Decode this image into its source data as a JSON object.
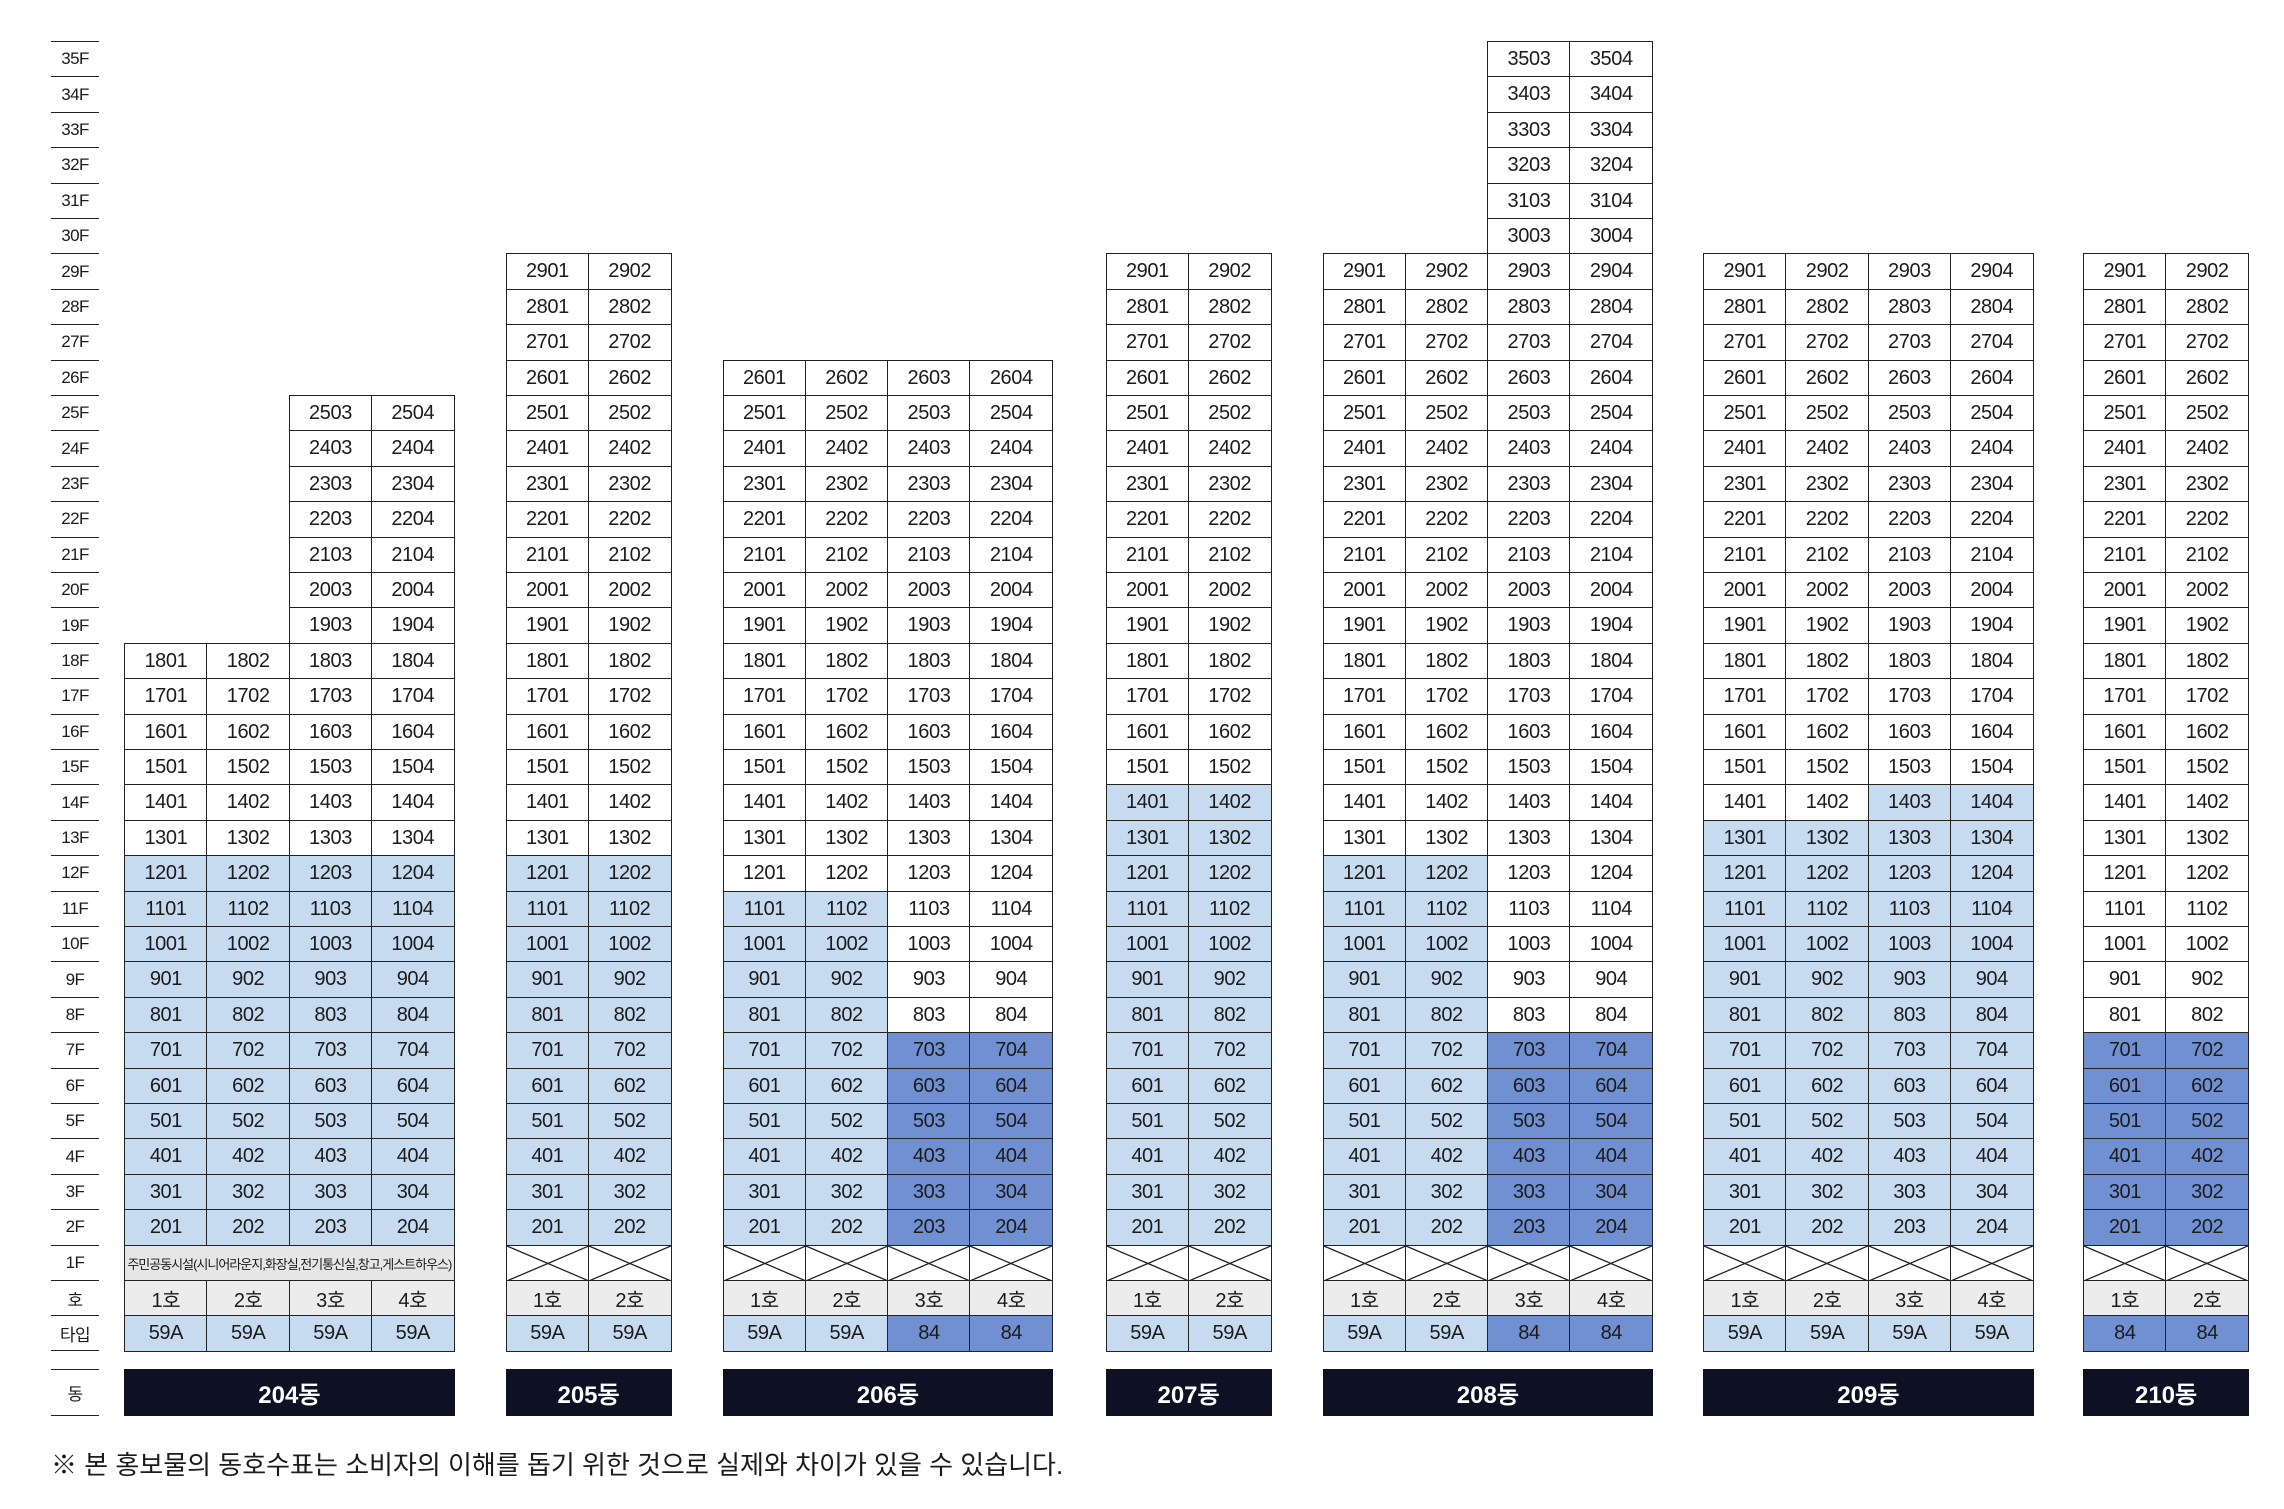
{
  "floor_labels": [
    "35F",
    "34F",
    "33F",
    "32F",
    "31F",
    "30F",
    "29F",
    "28F",
    "27F",
    "26F",
    "25F",
    "24F",
    "23F",
    "22F",
    "21F",
    "20F",
    "19F",
    "18F",
    "17F",
    "16F",
    "15F",
    "14F",
    "13F",
    "12F",
    "11F",
    "10F",
    "9F",
    "8F",
    "7F",
    "6F",
    "5F",
    "4F",
    "3F",
    "2F",
    "1F"
  ],
  "row_labels": {
    "ho": "호",
    "type": "타입",
    "dong": "동"
  },
  "colors": {
    "type_colors": {
      "59A": "#c6daf0",
      "84": "#7190d2"
    },
    "cell_bg": "#ffffff",
    "ho_row_bg": "#ececec",
    "facility_bg": "#e6e6e6",
    "dong_bar_bg": "#0e1024",
    "border": "#222222"
  },
  "icons": {
    "empty_ground_cell": "cross-mark-icon"
  },
  "buildings": [
    {
      "name": "204동",
      "ground_facility_text": "주민공동시설(시니어라운지,화장실,전기통신실,창고,게스트하우스)",
      "ground_crossed": false,
      "lines": [
        {
          "ho": "1호",
          "type": "59A",
          "shaded_floors": [
            2,
            12
          ],
          "units": [
            "1801",
            "1701",
            "1601",
            "1501",
            "1401",
            "1301",
            "1201",
            "1101",
            "1001",
            "901",
            "801",
            "701",
            "601",
            "501",
            "401",
            "301",
            "201"
          ]
        },
        {
          "ho": "2호",
          "type": "59A",
          "shaded_floors": [
            2,
            12
          ],
          "units": [
            "1802",
            "1702",
            "1602",
            "1502",
            "1402",
            "1302",
            "1202",
            "1102",
            "1002",
            "902",
            "802",
            "702",
            "602",
            "502",
            "402",
            "302",
            "202"
          ]
        },
        {
          "ho": "3호",
          "type": "59A",
          "shaded_floors": [
            2,
            12
          ],
          "units": [
            "2503",
            "2403",
            "2303",
            "2203",
            "2103",
            "2003",
            "1903",
            "1803",
            "1703",
            "1603",
            "1503",
            "1403",
            "1303",
            "1203",
            "1103",
            "1003",
            "903",
            "803",
            "703",
            "603",
            "503",
            "403",
            "303",
            "203"
          ]
        },
        {
          "ho": "4호",
          "type": "59A",
          "shaded_floors": [
            2,
            12
          ],
          "units": [
            "2504",
            "2404",
            "2304",
            "2204",
            "2104",
            "2004",
            "1904",
            "1804",
            "1704",
            "1604",
            "1504",
            "1404",
            "1304",
            "1204",
            "1104",
            "1004",
            "904",
            "804",
            "704",
            "604",
            "504",
            "404",
            "304",
            "204"
          ]
        }
      ]
    },
    {
      "name": "205동",
      "ground_crossed": true,
      "lines": [
        {
          "ho": "1호",
          "type": "59A",
          "shaded_floors": [
            2,
            12
          ],
          "units": [
            "2901",
            "2801",
            "2701",
            "2601",
            "2501",
            "2401",
            "2301",
            "2201",
            "2101",
            "2001",
            "1901",
            "1801",
            "1701",
            "1601",
            "1501",
            "1401",
            "1301",
            "1201",
            "1101",
            "1001",
            "901",
            "801",
            "701",
            "601",
            "501",
            "401",
            "301",
            "201"
          ]
        },
        {
          "ho": "2호",
          "type": "59A",
          "shaded_floors": [
            2,
            12
          ],
          "units": [
            "2902",
            "2802",
            "2702",
            "2602",
            "2502",
            "2402",
            "2302",
            "2202",
            "2102",
            "2002",
            "1902",
            "1802",
            "1702",
            "1602",
            "1502",
            "1402",
            "1302",
            "1202",
            "1102",
            "1002",
            "902",
            "802",
            "702",
            "602",
            "502",
            "402",
            "302",
            "202"
          ]
        }
      ]
    },
    {
      "name": "206동",
      "ground_crossed": true,
      "lines": [
        {
          "ho": "1호",
          "type": "59A",
          "shaded_floors": [
            2,
            11
          ],
          "units": [
            "2601",
            "2501",
            "2401",
            "2301",
            "2201",
            "2101",
            "2001",
            "1901",
            "1801",
            "1701",
            "1601",
            "1501",
            "1401",
            "1301",
            "1201",
            "1101",
            "1001",
            "901",
            "801",
            "701",
            "601",
            "501",
            "401",
            "301",
            "201"
          ]
        },
        {
          "ho": "2호",
          "type": "59A",
          "shaded_floors": [
            2,
            11
          ],
          "units": [
            "2602",
            "2502",
            "2402",
            "2302",
            "2202",
            "2102",
            "2002",
            "1902",
            "1802",
            "1702",
            "1602",
            "1502",
            "1402",
            "1302",
            "1202",
            "1102",
            "1002",
            "902",
            "802",
            "702",
            "602",
            "502",
            "402",
            "302",
            "202"
          ]
        },
        {
          "ho": "3호",
          "type": "84",
          "shaded_floors": [
            2,
            7
          ],
          "units": [
            "2603",
            "2503",
            "2403",
            "2303",
            "2203",
            "2103",
            "2003",
            "1903",
            "1803",
            "1703",
            "1603",
            "1503",
            "1403",
            "1303",
            "1203",
            "1103",
            "1003",
            "903",
            "803",
            "703",
            "603",
            "503",
            "403",
            "303",
            "203"
          ]
        },
        {
          "ho": "4호",
          "type": "84",
          "shaded_floors": [
            2,
            7
          ],
          "units": [
            "2604",
            "2504",
            "2404",
            "2304",
            "2204",
            "2104",
            "2004",
            "1904",
            "1804",
            "1704",
            "1604",
            "1504",
            "1404",
            "1304",
            "1204",
            "1104",
            "1004",
            "904",
            "804",
            "704",
            "604",
            "504",
            "404",
            "304",
            "204"
          ]
        }
      ]
    },
    {
      "name": "207동",
      "ground_crossed": true,
      "lines": [
        {
          "ho": "1호",
          "type": "59A",
          "shaded_floors": [
            2,
            14
          ],
          "units": [
            "2901",
            "2801",
            "2701",
            "2601",
            "2501",
            "2401",
            "2301",
            "2201",
            "2101",
            "2001",
            "1901",
            "1801",
            "1701",
            "1601",
            "1501",
            "1401",
            "1301",
            "1201",
            "1101",
            "1001",
            "901",
            "801",
            "701",
            "601",
            "501",
            "401",
            "301",
            "201"
          ]
        },
        {
          "ho": "2호",
          "type": "59A",
          "shaded_floors": [
            2,
            14
          ],
          "units": [
            "2902",
            "2802",
            "2702",
            "2602",
            "2502",
            "2402",
            "2302",
            "2202",
            "2102",
            "2002",
            "1902",
            "1802",
            "1702",
            "1602",
            "1502",
            "1402",
            "1302",
            "1202",
            "1102",
            "1002",
            "902",
            "802",
            "702",
            "602",
            "502",
            "402",
            "302",
            "202"
          ]
        }
      ]
    },
    {
      "name": "208동",
      "ground_crossed": true,
      "lines": [
        {
          "ho": "1호",
          "type": "59A",
          "shaded_floors": [
            2,
            12
          ],
          "units": [
            "2901",
            "2801",
            "2701",
            "2601",
            "2501",
            "2401",
            "2301",
            "2201",
            "2101",
            "2001",
            "1901",
            "1801",
            "1701",
            "1601",
            "1501",
            "1401",
            "1301",
            "1201",
            "1101",
            "1001",
            "901",
            "801",
            "701",
            "601",
            "501",
            "401",
            "301",
            "201"
          ]
        },
        {
          "ho": "2호",
          "type": "59A",
          "shaded_floors": [
            2,
            12
          ],
          "units": [
            "2902",
            "2802",
            "2702",
            "2602",
            "2502",
            "2402",
            "2302",
            "2202",
            "2102",
            "2002",
            "1902",
            "1802",
            "1702",
            "1602",
            "1502",
            "1402",
            "1302",
            "1202",
            "1102",
            "1002",
            "902",
            "802",
            "702",
            "602",
            "502",
            "402",
            "302",
            "202"
          ]
        },
        {
          "ho": "3호",
          "type": "84",
          "shaded_floors": [
            2,
            7
          ],
          "units": [
            "3503",
            "3403",
            "3303",
            "3203",
            "3103",
            "3003",
            "2903",
            "2803",
            "2703",
            "2603",
            "2503",
            "2403",
            "2303",
            "2203",
            "2103",
            "2003",
            "1903",
            "1803",
            "1703",
            "1603",
            "1503",
            "1403",
            "1303",
            "1203",
            "1103",
            "1003",
            "903",
            "803",
            "703",
            "603",
            "503",
            "403",
            "303",
            "203"
          ]
        },
        {
          "ho": "4호",
          "type": "84",
          "shaded_floors": [
            2,
            7
          ],
          "units": [
            "3504",
            "3404",
            "3304",
            "3204",
            "3104",
            "3004",
            "2904",
            "2804",
            "2704",
            "2604",
            "2504",
            "2404",
            "2304",
            "2204",
            "2104",
            "2004",
            "1904",
            "1804",
            "1704",
            "1604",
            "1504",
            "1404",
            "1304",
            "1204",
            "1104",
            "1004",
            "904",
            "804",
            "704",
            "604",
            "504",
            "404",
            "304",
            "204"
          ]
        }
      ]
    },
    {
      "name": "209동",
      "ground_crossed": true,
      "lines": [
        {
          "ho": "1호",
          "type": "59A",
          "shaded_floors": [
            2,
            13
          ],
          "units": [
            "2901",
            "2801",
            "2701",
            "2601",
            "2501",
            "2401",
            "2301",
            "2201",
            "2101",
            "2001",
            "1901",
            "1801",
            "1701",
            "1601",
            "1501",
            "1401",
            "1301",
            "1201",
            "1101",
            "1001",
            "901",
            "801",
            "701",
            "601",
            "501",
            "401",
            "301",
            "201"
          ]
        },
        {
          "ho": "2호",
          "type": "59A",
          "shaded_floors": [
            2,
            13
          ],
          "units": [
            "2902",
            "2802",
            "2702",
            "2602",
            "2502",
            "2402",
            "2302",
            "2202",
            "2102",
            "2002",
            "1902",
            "1802",
            "1702",
            "1602",
            "1502",
            "1402",
            "1302",
            "1202",
            "1102",
            "1002",
            "902",
            "802",
            "702",
            "602",
            "502",
            "402",
            "302",
            "202"
          ]
        },
        {
          "ho": "3호",
          "type": "59A",
          "shaded_floors": [
            2,
            14
          ],
          "units": [
            "2903",
            "2803",
            "2703",
            "2603",
            "2503",
            "2403",
            "2303",
            "2203",
            "2103",
            "2003",
            "1903",
            "1803",
            "1703",
            "1603",
            "1503",
            "1403",
            "1303",
            "1203",
            "1103",
            "1003",
            "903",
            "803",
            "703",
            "603",
            "503",
            "403",
            "303",
            "203"
          ]
        },
        {
          "ho": "4호",
          "type": "59A",
          "shaded_floors": [
            2,
            14
          ],
          "units": [
            "2904",
            "2804",
            "2704",
            "2604",
            "2504",
            "2404",
            "2304",
            "2204",
            "2104",
            "2004",
            "1904",
            "1804",
            "1704",
            "1604",
            "1504",
            "1404",
            "1304",
            "1204",
            "1104",
            "1004",
            "904",
            "804",
            "704",
            "604",
            "504",
            "404",
            "304",
            "204"
          ]
        }
      ]
    },
    {
      "name": "210동",
      "ground_crossed": true,
      "lines": [
        {
          "ho": "1호",
          "type": "84",
          "shaded_floors": [
            2,
            7
          ],
          "units": [
            "2901",
            "2801",
            "2701",
            "2601",
            "2501",
            "2401",
            "2301",
            "2201",
            "2101",
            "2001",
            "1901",
            "1801",
            "1701",
            "1601",
            "1501",
            "1401",
            "1301",
            "1201",
            "1101",
            "1001",
            "901",
            "801",
            "701",
            "601",
            "501",
            "401",
            "301",
            "201"
          ]
        },
        {
          "ho": "2호",
          "type": "84",
          "shaded_floors": [
            2,
            7
          ],
          "units": [
            "2902",
            "2802",
            "2702",
            "2602",
            "2502",
            "2402",
            "2302",
            "2202",
            "2102",
            "2002",
            "1902",
            "1802",
            "1702",
            "1602",
            "1502",
            "1402",
            "1302",
            "1202",
            "1102",
            "1002",
            "902",
            "802",
            "702",
            "602",
            "502",
            "402",
            "302",
            "202"
          ]
        }
      ]
    }
  ],
  "note": "※ 본 홍보물의 동호수표는 소비자의 이해를 돕기 위한 것으로 실제와 차이가 있을 수 있습니다."
}
